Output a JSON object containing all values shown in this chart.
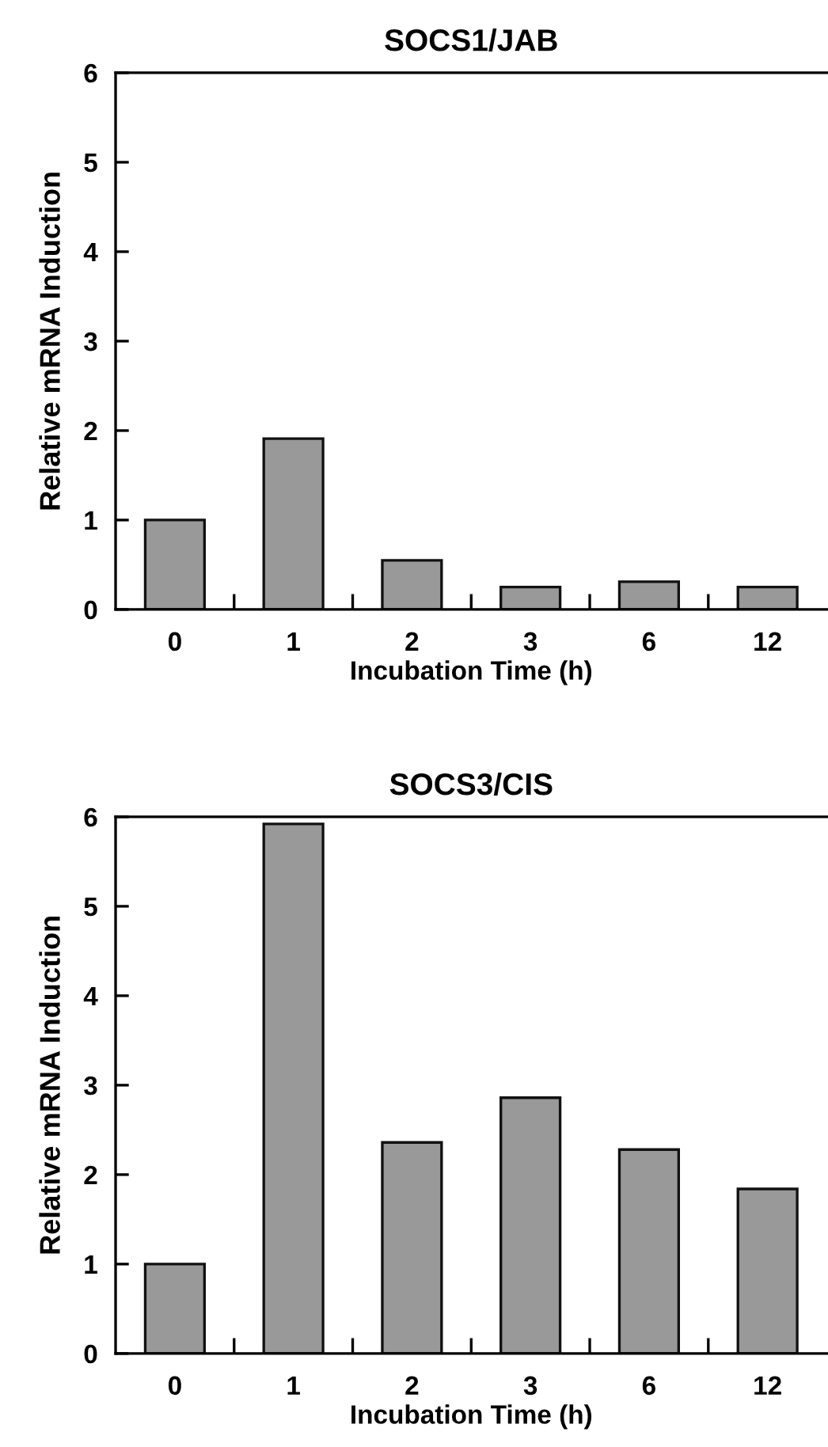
{
  "chart_data": [
    {
      "type": "bar",
      "title": "SOCS1/JAB",
      "xlabel": "Incubation Time (h)",
      "ylabel": "Relative mRNA Induction",
      "categories": [
        "0",
        "1",
        "2",
        "3",
        "6",
        "12"
      ],
      "values": [
        1.0,
        1.91,
        0.55,
        0.25,
        0.31,
        0.25
      ],
      "color": "#999999",
      "ylim": [
        0,
        6
      ],
      "yticks": [
        0,
        1,
        2,
        3,
        4,
        5,
        6
      ],
      "grid": false
    },
    {
      "type": "bar",
      "title": "SOCS3/CIS",
      "xlabel": "Incubation Time (h)",
      "ylabel": "Relative mRNA Induction",
      "categories": [
        "0",
        "1",
        "2",
        "3",
        "6",
        "12"
      ],
      "values": [
        1.0,
        5.92,
        2.36,
        2.86,
        2.28,
        1.84
      ],
      "color": "#999999",
      "ylim": [
        0,
        6
      ],
      "yticks": [
        0,
        1,
        2,
        3,
        4,
        5,
        6
      ],
      "grid": false
    }
  ]
}
